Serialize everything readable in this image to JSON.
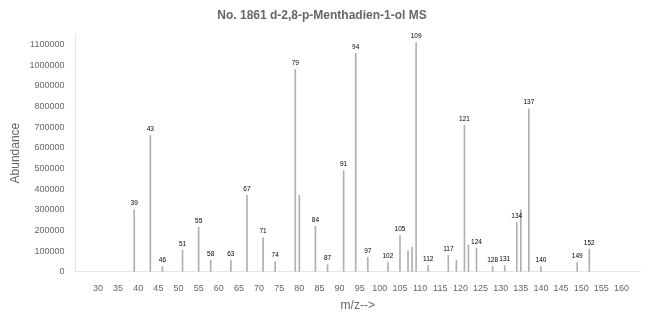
{
  "chart_data": {
    "type": "bar",
    "title": "No. 1861 d-2,8-p-Menthadien-1-ol MS",
    "xlabel": "m/z-->",
    "ylabel": "Abundance",
    "x": [
      39,
      43,
      46,
      51,
      55,
      58,
      63,
      67,
      71,
      74,
      79,
      80,
      84,
      87,
      91,
      94,
      97,
      102,
      105,
      107,
      108,
      109,
      112,
      117,
      119,
      121,
      122,
      124,
      128,
      131,
      134,
      135,
      137,
      140,
      149,
      152
    ],
    "values": [
      300000,
      660000,
      25000,
      105000,
      215000,
      55000,
      55000,
      370000,
      165000,
      50000,
      980000,
      370000,
      220000,
      35000,
      490000,
      1060000,
      70000,
      45000,
      175000,
      100000,
      120000,
      1110000,
      30000,
      80000,
      55000,
      710000,
      130000,
      115000,
      28000,
      30000,
      240000,
      300000,
      790000,
      25000,
      45000,
      110000
    ],
    "color": "#b0b0b0",
    "xlim": [
      27,
      162
    ],
    "ylim": [
      0,
      1150000
    ],
    "xticks": [
      30,
      35,
      40,
      45,
      50,
      55,
      60,
      65,
      70,
      75,
      80,
      85,
      90,
      95,
      100,
      105,
      110,
      115,
      120,
      125,
      130,
      135,
      140,
      145,
      150,
      155,
      160
    ],
    "yticks": [
      0,
      100000,
      200000,
      300000,
      400000,
      500000,
      600000,
      700000,
      800000,
      900000,
      1000000,
      1100000
    ],
    "grid": false,
    "annotations": [
      {
        "text": "39",
        "x": 39,
        "y": 300000
      },
      {
        "text": "43",
        "x": 43,
        "y": 660000
      },
      {
        "text": "46",
        "x": 46,
        "y": 25000
      },
      {
        "text": "51",
        "x": 51,
        "y": 105000
      },
      {
        "text": "55",
        "x": 55,
        "y": 215000
      },
      {
        "text": "58",
        "x": 58,
        "y": 55000
      },
      {
        "text": "63",
        "x": 63,
        "y": 55000
      },
      {
        "text": "67",
        "x": 67,
        "y": 370000
      },
      {
        "text": "71",
        "x": 71,
        "y": 165000
      },
      {
        "text": "74",
        "x": 74,
        "y": 50000
      },
      {
        "text": "79",
        "x": 79,
        "y": 980000
      },
      {
        "text": "84",
        "x": 84,
        "y": 220000
      },
      {
        "text": "87",
        "x": 87,
        "y": 35000
      },
      {
        "text": "91",
        "x": 91,
        "y": 490000
      },
      {
        "text": "94",
        "x": 94,
        "y": 1060000
      },
      {
        "text": "97",
        "x": 97,
        "y": 70000
      },
      {
        "text": "102",
        "x": 102,
        "y": 45000
      },
      {
        "text": "105",
        "x": 105,
        "y": 175000
      },
      {
        "text": "109",
        "x": 109,
        "y": 1110000
      },
      {
        "text": "112",
        "x": 112,
        "y": 30000
      },
      {
        "text": "117",
        "x": 117,
        "y": 80000
      },
      {
        "text": "121",
        "x": 121,
        "y": 710000
      },
      {
        "text": "124",
        "x": 124,
        "y": 115000
      },
      {
        "text": "128",
        "x": 128,
        "y": 28000
      },
      {
        "text": "131",
        "x": 131,
        "y": 30000
      },
      {
        "text": "134",
        "x": 134,
        "y": 240000
      },
      {
        "text": "137",
        "x": 137,
        "y": 790000
      },
      {
        "text": "140",
        "x": 140,
        "y": 25000
      },
      {
        "text": "149",
        "x": 149,
        "y": 45000
      },
      {
        "text": "152",
        "x": 152,
        "y": 110000
      }
    ]
  }
}
